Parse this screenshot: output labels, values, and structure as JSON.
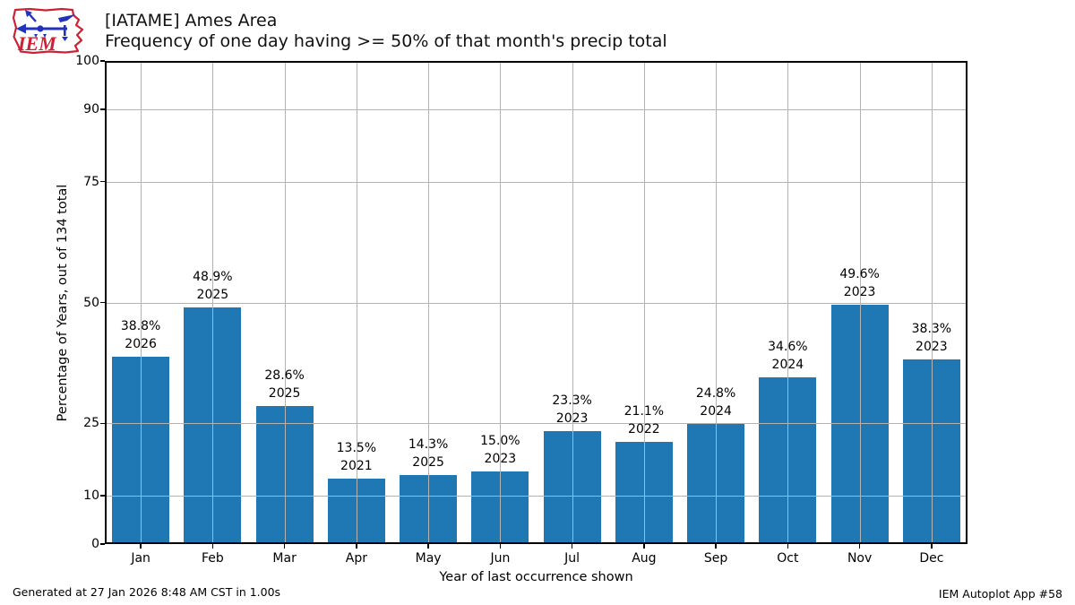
{
  "header": {
    "title_line1": "[IATAME] Ames Area",
    "title_line2": "Frequency of one day having >= 50% of that month's precip total",
    "logo_text": "IEM"
  },
  "chart_data": {
    "type": "bar",
    "title": "[IATAME] Ames Area — Frequency of one day having >= 50% of that month's precip total",
    "categories": [
      "Jan",
      "Feb",
      "Mar",
      "Apr",
      "May",
      "Jun",
      "Jul",
      "Aug",
      "Sep",
      "Oct",
      "Nov",
      "Dec"
    ],
    "values": [
      38.8,
      48.9,
      28.6,
      13.5,
      14.3,
      15.0,
      23.3,
      21.1,
      24.8,
      34.6,
      49.6,
      38.3
    ],
    "bar_value_labels": [
      "38.8%",
      "48.9%",
      "28.6%",
      "13.5%",
      "14.3%",
      "15.0%",
      "23.3%",
      "21.1%",
      "24.8%",
      "34.6%",
      "49.6%",
      "38.3%"
    ],
    "bar_year_labels": [
      "2026",
      "2025",
      "2025",
      "2021",
      "2025",
      "2023",
      "2023",
      "2022",
      "2024",
      "2024",
      "2023",
      "2023"
    ],
    "xlabel": "Year of last occurrence shown",
    "ylabel": "Percentage of Years, out of 134 total",
    "ylim": [
      0,
      100
    ],
    "yticks": [
      0,
      10,
      25,
      50,
      75,
      90,
      100
    ],
    "grid": true,
    "legend": "none",
    "bar_color": "#1f77b4",
    "grid_color": "#b3b3b3",
    "axis_color": "#000000"
  },
  "footer": {
    "generated": "Generated at 27 Jan 2026 8:48 AM CST in 1.00s",
    "app": "IEM Autoplot App #58"
  }
}
